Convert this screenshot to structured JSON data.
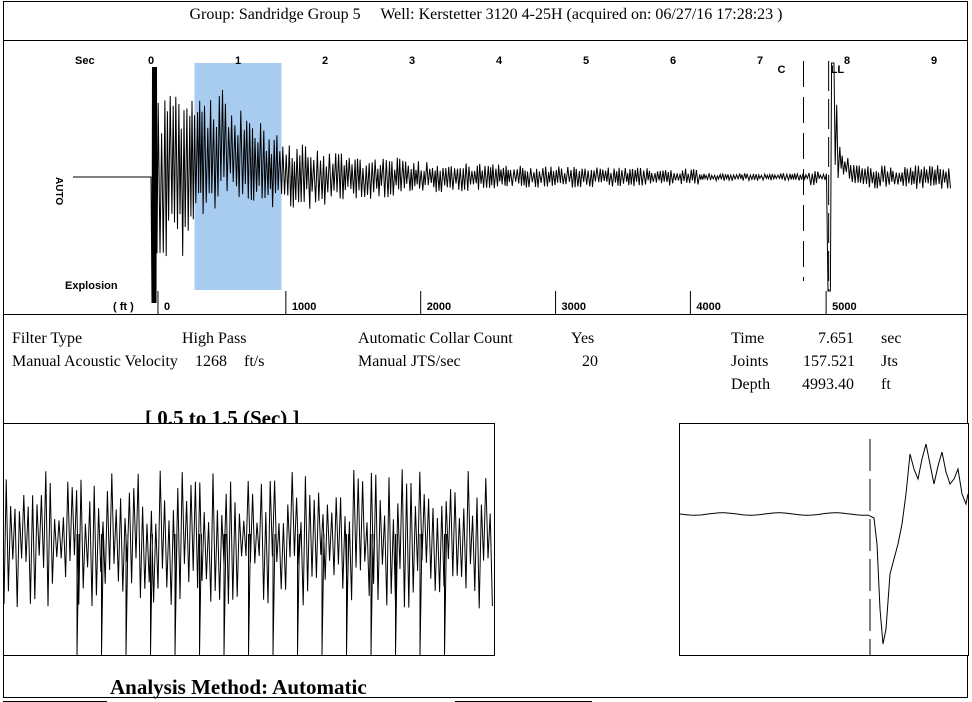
{
  "header": {
    "group": "Group: Sandridge Group 5",
    "well": "Well: Kerstetter 3120 4-25H (acquired on: 06/27/16 17:28:23 )"
  },
  "chart_data": {
    "type": "line",
    "x_unit_label": "Sec",
    "x_ticks": [
      "0",
      "1",
      "2",
      "3",
      "4",
      "5",
      "6",
      "7",
      "8",
      "9"
    ],
    "xlim": [
      0,
      9.2
    ],
    "depth_unit_label": "( ft )",
    "depth_ticks": [
      "0",
      "1000",
      "2000",
      "3000",
      "4000",
      "5000"
    ],
    "depth_tick_times": [
      0.08,
      1.55,
      3.1,
      4.65,
      6.2,
      7.76
    ],
    "y_label": "AUTO",
    "explosion_label": "Explosion",
    "collar_label": "C",
    "liquid_label": "LL",
    "highlight_range_sec": [
      0.5,
      1.5
    ],
    "highlight_color": "#a8ccf0",
    "collar_time_sec": 7.5,
    "liquid_level_time_sec": 7.651,
    "trace_color": "#000000"
  },
  "parameters": {
    "filter_type_label": "Filter Type",
    "filter_type_value": "High Pass",
    "velocity_label": "Manual Acoustic Velocity",
    "velocity_value": "1268",
    "velocity_unit": "ft/s",
    "auto_collar_label": "Automatic Collar Count",
    "auto_collar_value": "Yes",
    "jts_label": "Manual JTS/sec",
    "jts_value": "20",
    "time_label": "Time",
    "time_value": "7.651",
    "time_unit": "sec",
    "joints_label": "Joints",
    "joints_value": "157.521",
    "joints_unit": "Jts",
    "depth_label": "Depth",
    "depth_value": "4993.40",
    "depth_unit": "ft"
  },
  "detail": {
    "range_title": "[ 0.5  to  1.5 (Sec) ]",
    "analysis_title": "Analysis Method:   Automatic"
  }
}
